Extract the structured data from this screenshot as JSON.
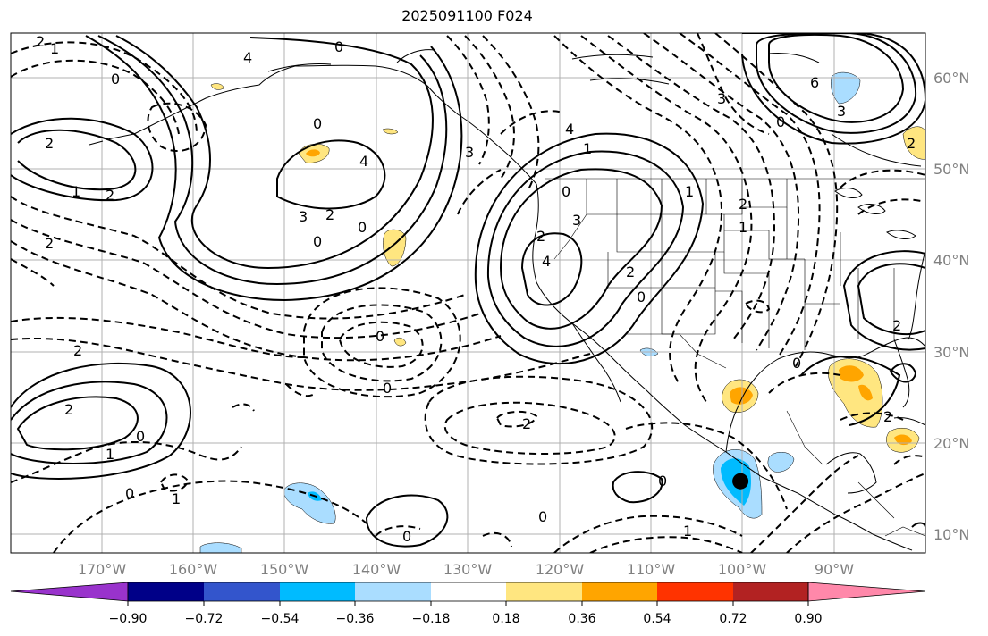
{
  "title": "2025091100 F024",
  "lat_labels": [
    "60°N",
    "50°N",
    "40°N",
    "30°N",
    "20°N",
    "10°N"
  ],
  "lon_labels": [
    "170°W",
    "160°W",
    "150°W",
    "140°W",
    "130°W",
    "120°W",
    "110°W",
    "100°W",
    "90°W"
  ],
  "colorbar": {
    "ticks": [
      "−0.90",
      "−0.72",
      "−0.54",
      "−0.36",
      "−0.18",
      "0.18",
      "0.36",
      "0.54",
      "0.72",
      "0.90"
    ],
    "colors": [
      "#9933cc",
      "#000088",
      "#3355cc",
      "#00bbff",
      "#aaddff",
      "#ffffff",
      "#ffe680",
      "#ffa500",
      "#ff3300",
      "#b22222",
      "#ff88aa"
    ]
  },
  "contour_labels": [
    "2",
    "1",
    "0",
    "4",
    "0",
    "0",
    "2",
    "2",
    "1",
    "2",
    "4",
    "3",
    "2",
    "0",
    "0",
    "3",
    "4",
    "1",
    "0",
    "2",
    "3",
    "4",
    "2",
    "1",
    "0",
    "0",
    "2",
    "1",
    "2",
    "1",
    "0",
    "0",
    "0",
    "2",
    "2",
    "1",
    "0",
    "0",
    "0",
    "1",
    "2",
    "0",
    "2",
    "6",
    "0",
    "3",
    "2",
    "3"
  ],
  "marker": {
    "lat": 15.8,
    "lon": -100.2,
    "name": "storm-center"
  }
}
